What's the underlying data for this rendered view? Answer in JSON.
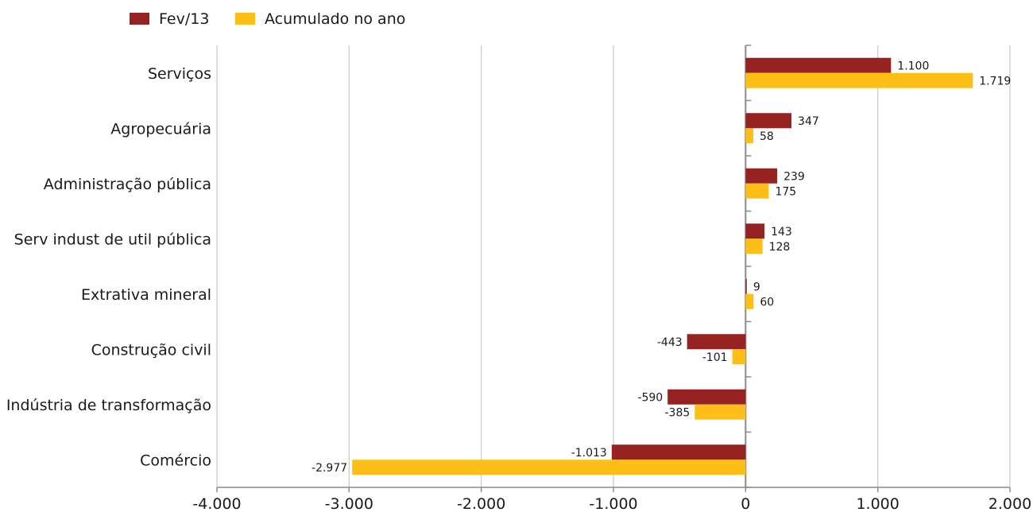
{
  "chart_data": {
    "type": "bar",
    "orientation": "horizontal",
    "categories": [
      "Serviços",
      "Agropecuária",
      "Administração pública",
      "Serv indust de util pública",
      "Extrativa mineral",
      "Construção civil",
      "Indústria de transformação",
      "Comércio"
    ],
    "series": [
      {
        "name": "Fev/13",
        "color": "#962321",
        "values": [
          1100,
          347,
          239,
          143,
          9,
          -443,
          -590,
          -1013
        ],
        "labels": [
          "1.100",
          "347",
          "239",
          "143",
          "9",
          "-443",
          "-590",
          "-1.013"
        ]
      },
      {
        "name": "Acumulado no ano",
        "color": "#FDBF17",
        "values": [
          1719,
          58,
          175,
          128,
          60,
          -101,
          -385,
          -2977
        ],
        "labels": [
          "1.719",
          "58",
          "175",
          "128",
          "60",
          "-101",
          "-385",
          "-2.977"
        ]
      }
    ],
    "xlim": [
      -4000,
      2000
    ],
    "xticks": [
      -4000,
      -3000,
      -2000,
      -1000,
      0,
      1000,
      2000
    ],
    "xtick_labels": [
      "-4.000",
      "-3.000",
      "-2.000",
      "-1.000",
      "0",
      "1.000",
      "2.000"
    ],
    "grid": true,
    "legend_position": "top-left",
    "title": "",
    "xlabel": "",
    "ylabel": ""
  }
}
